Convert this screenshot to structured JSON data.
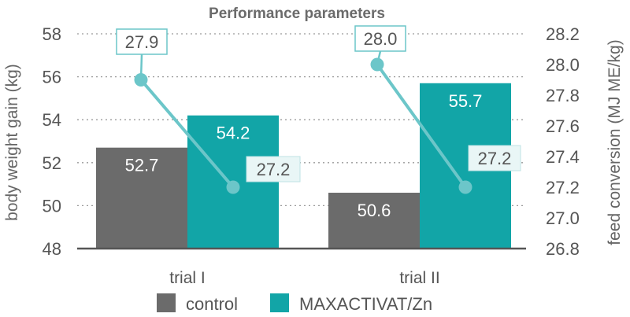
{
  "chart_data": {
    "type": "bar",
    "title": "Performance parameters",
    "categories": [
      "trial I",
      "trial II"
    ],
    "series": [
      {
        "name": "control",
        "axis": "left",
        "values": [
          52.7,
          50.6
        ],
        "color": "#6b6b6b"
      },
      {
        "name": "MAXACTIVAT/Zn",
        "axis": "left",
        "values": [
          54.2,
          55.7
        ],
        "color": "#12a5a7"
      }
    ],
    "line_series": {
      "axis": "right",
      "color": "#6cc6c9",
      "segments": [
        {
          "category": "trial I",
          "values": [
            27.9,
            27.2
          ]
        },
        {
          "category": "trial II",
          "values": [
            28.0,
            27.2
          ]
        }
      ]
    },
    "y_left": {
      "label": "body weight gain (kg)",
      "range": [
        48,
        58
      ],
      "ticks": [
        "48",
        "50",
        "52",
        "54",
        "56",
        "58"
      ]
    },
    "y_right": {
      "label": "feed conversion (MJ ME/kg)",
      "range": [
        26.8,
        28.2
      ],
      "ticks": [
        "26.8",
        "27.0",
        "27.2",
        "27.4",
        "27.6",
        "27.8",
        "28.0",
        "28.2"
      ]
    },
    "grid": true,
    "legend": {
      "position": "bottom",
      "entries": [
        "control",
        "MAXACTIVAT/Zn"
      ]
    }
  }
}
